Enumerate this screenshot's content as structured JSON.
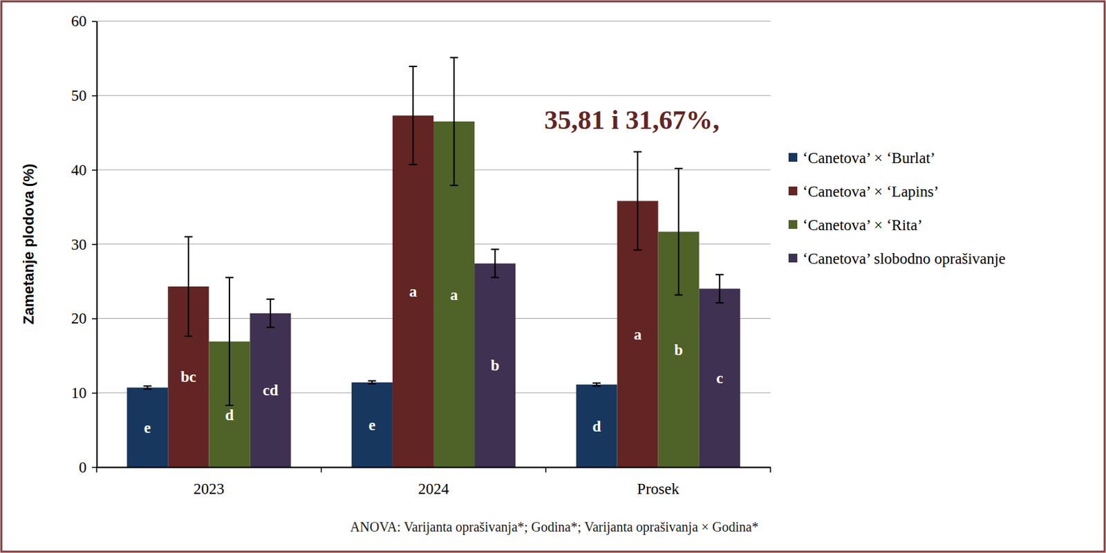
{
  "chart_data": {
    "type": "bar",
    "y_label": "Zametanje plodova (%)",
    "categories": [
      "2023",
      "2024",
      "Prosek"
    ],
    "series": [
      {
        "name": "‘Canetova’ × ‘Burlat’",
        "color": "#17375e",
        "values": [
          10.7,
          11.4,
          11.1
        ],
        "errors": [
          0.2,
          0.2,
          0.2
        ],
        "letters": [
          "e",
          "e",
          "d"
        ]
      },
      {
        "name": "‘Canetova’ × ‘Lapins’",
        "color": "#632523",
        "values": [
          24.3,
          47.3,
          35.81
        ],
        "errors": [
          6.7,
          6.6,
          6.6
        ],
        "letters": [
          "bc",
          "a",
          "a"
        ]
      },
      {
        "name": "‘Canetova’ × ‘Rita’",
        "color": "#4f6228",
        "values": [
          16.9,
          46.5,
          31.67
        ],
        "errors": [
          8.6,
          8.6,
          8.5
        ],
        "letters": [
          "d",
          "a",
          "b"
        ]
      },
      {
        "name": "‘Canetova’ slobodno oprašivanje",
        "color": "#3f3151",
        "values": [
          20.7,
          27.4,
          24.0
        ],
        "errors": [
          1.9,
          1.9,
          1.9
        ],
        "letters": [
          "cd",
          "b",
          "c"
        ]
      }
    ],
    "ylim": [
      0,
      60
    ],
    "yticks": [
      0,
      10,
      20,
      30,
      40,
      50,
      60
    ],
    "grid": true,
    "legend": "right",
    "annotations": [
      "35,81 i 31,67%,"
    ],
    "footnote": "ANOVA: Varijanta oprašivanja*;  Godina*; Varijanta oprašivanja × Godina*"
  }
}
